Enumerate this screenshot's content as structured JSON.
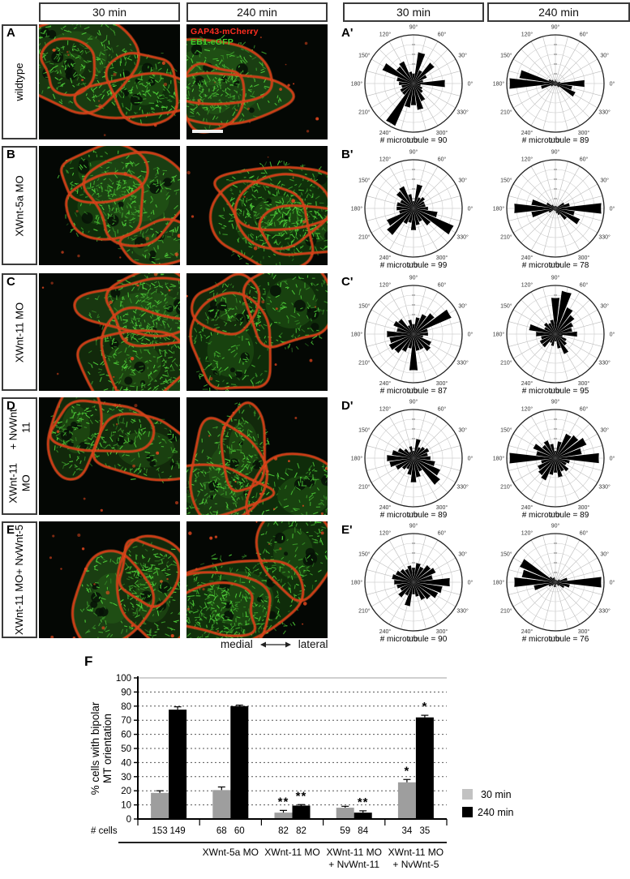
{
  "image_panel_headers": [
    {
      "label": "30 min"
    },
    {
      "label": "240 min"
    }
  ],
  "rose_panel_headers": [
    {
      "label": "30 min"
    },
    {
      "label": "240 min"
    }
  ],
  "overlay": {
    "red_label": "GAP43-mCherry",
    "green_label": "EB1-eGFP",
    "red_color": "#ff2d20",
    "green_color": "#3fd12c"
  },
  "axis_direction": {
    "left": "medial",
    "right": "lateral"
  },
  "rose_angle_labels": [
    "0°",
    "30°",
    "60°",
    "90°",
    "120°",
    "150°",
    "180°",
    "210°",
    "240°",
    "270°",
    "300°",
    "330°"
  ],
  "rose_bin_width_deg": 15,
  "rows": [
    {
      "letter": "A",
      "label_lines": [
        "wildtype"
      ],
      "rose_letter": "A'",
      "roses": [
        {
          "caption": "# microtubule = 90",
          "values": [
            0.65,
            0.2,
            0.3,
            0.55,
            0.3,
            0.65,
            0.2,
            0.25,
            0.5,
            0.45,
            0.7,
            0.35,
            0.3,
            0.25,
            0.3,
            0.3,
            0.95,
            0.5,
            0.45,
            0.55,
            0.4,
            0.25,
            0.2,
            0.15
          ]
        },
        {
          "caption": "# microtubule = 89",
          "values": [
            0.6,
            0.1,
            0.05,
            0.05,
            0.05,
            0.05,
            0.08,
            0.05,
            0.05,
            0.1,
            0.15,
            0.75,
            0.95,
            0.3,
            0.1,
            0.05,
            0.05,
            0.05,
            0.05,
            0.05,
            0.05,
            0.1,
            0.45,
            0.35
          ]
        }
      ]
    },
    {
      "letter": "B",
      "label_lines": [
        "XWnt-5a MO"
      ],
      "rose_letter": "B'",
      "roses": [
        {
          "caption": "# microtubule = 99",
          "values": [
            0.3,
            0.25,
            0.25,
            0.3,
            0.25,
            0.5,
            0.15,
            0.3,
            0.5,
            0.45,
            0.3,
            0.35,
            0.35,
            0.3,
            0.6,
            0.7,
            0.35,
            0.3,
            0.45,
            0.35,
            0.3,
            0.45,
            0.9,
            0.5
          ]
        },
        {
          "caption": "# microtubule = 78",
          "values": [
            0.95,
            0.3,
            0.2,
            0.05,
            0.05,
            0.05,
            0.05,
            0.05,
            0.05,
            0.1,
            0.2,
            0.5,
            0.85,
            0.5,
            0.15,
            0.05,
            0.05,
            0.05,
            0.05,
            0.1,
            0.15,
            0.3,
            0.55,
            0.4
          ]
        }
      ]
    },
    {
      "letter": "C",
      "label_lines": [
        "XWnt-11 MO"
      ],
      "rose_letter": "C'",
      "roses": [
        {
          "caption": "# microtubule = 87",
          "values": [
            0.3,
            0.3,
            0.85,
            0.55,
            0.45,
            0.35,
            0.2,
            0.3,
            0.2,
            0.4,
            0.45,
            0.35,
            0.55,
            0.5,
            0.55,
            0.5,
            0.4,
            0.3,
            0.75,
            0.35,
            0.35,
            0.45,
            0.4,
            0.2
          ]
        },
        {
          "caption": "# microtubule = 95",
          "values": [
            0.45,
            0.35,
            0.4,
            0.5,
            0.6,
            0.9,
            0.75,
            0.3,
            0.25,
            0.3,
            0.25,
            0.55,
            0.4,
            0.3,
            0.35,
            0.35,
            0.2,
            0.25,
            0.15,
            0.3,
            0.45,
            0.3,
            0.25,
            0.15
          ]
        }
      ]
    },
    {
      "letter": "D",
      "label_lines": [
        "XWnt-11 MO",
        "+ NvWnt-11"
      ],
      "rose_letter": "D'",
      "roses": [
        {
          "caption": "# microtubule = 89",
          "values": [
            0.35,
            0.3,
            0.35,
            0.3,
            0.25,
            0.4,
            0.15,
            0.25,
            0.15,
            0.25,
            0.35,
            0.45,
            0.55,
            0.5,
            0.4,
            0.3,
            0.25,
            0.35,
            0.5,
            0.4,
            0.3,
            0.7,
            0.6,
            0.45
          ]
        },
        {
          "caption": "# microtubule = 89",
          "values": [
            0.9,
            0.55,
            0.7,
            0.6,
            0.55,
            0.35,
            0.15,
            0.3,
            0.4,
            0.35,
            0.5,
            0.4,
            0.95,
            0.3,
            0.4,
            0.45,
            0.5,
            0.35,
            0.3,
            0.4,
            0.3,
            0.35,
            0.25,
            0.3
          ]
        }
      ]
    },
    {
      "letter": "E",
      "label_lines": [
        "XWnt-11 MO",
        "+ NvWnt-5"
      ],
      "rose_letter": "E'",
      "roses": [
        {
          "caption": "# microtubule = 90",
          "values": [
            0.75,
            0.4,
            0.5,
            0.45,
            0.35,
            0.4,
            0.3,
            0.35,
            0.3,
            0.35,
            0.4,
            0.45,
            0.4,
            0.35,
            0.3,
            0.4,
            0.3,
            0.5,
            0.25,
            0.3,
            0.4,
            0.45,
            0.55,
            0.6
          ]
        },
        {
          "caption": "# microtubule = 76",
          "values": [
            0.95,
            0.25,
            0.1,
            0.05,
            0.05,
            0.05,
            0.05,
            0.1,
            0.1,
            0.15,
            0.8,
            0.7,
            0.85,
            0.45,
            0.15,
            0.1,
            0.05,
            0.1,
            0.1,
            0.05,
            0.05,
            0.1,
            0.2,
            0.3
          ]
        }
      ]
    }
  ],
  "chart_data": {
    "type": "bar",
    "panel_letter": "F",
    "ylabel_lines": [
      "% cells with bipolar",
      "MT orientation"
    ],
    "ylim": [
      0,
      100
    ],
    "ytick_step": 10,
    "grid": "dashed-horizontal",
    "legend_position": "right",
    "categories_lines": [
      [],
      [
        "XWnt-5a MO"
      ],
      [
        "XWnt-11 MO"
      ],
      [
        "XWnt-11 MO",
        "+ NvWnt-11"
      ],
      [
        "XWnt-11 MO",
        "+ NvWnt-5"
      ]
    ],
    "series": [
      {
        "name": "30 min",
        "color": "#9e9e9e",
        "legend_color": "#c2c2c2",
        "values": [
          18.5,
          20.5,
          4.5,
          8,
          26
        ],
        "errors": [
          1.5,
          2.2,
          1.6,
          1,
          2
        ],
        "significance": [
          "",
          "",
          "**",
          "",
          "*"
        ]
      },
      {
        "name": "240 min",
        "color": "#000000",
        "legend_color": "#000000",
        "values": [
          77.5,
          80,
          9.5,
          4.5,
          72
        ],
        "errors": [
          2,
          0.7,
          0.7,
          1.3,
          1.5
        ],
        "significance": [
          "",
          "",
          "**",
          "**",
          "*"
        ]
      }
    ],
    "cells_row": {
      "label": "# cells",
      "counts": [
        [
          "153",
          "149"
        ],
        [
          "68",
          "60"
        ],
        [
          "82",
          "82"
        ],
        [
          "59",
          "84"
        ],
        [
          "34",
          "35"
        ]
      ]
    }
  }
}
